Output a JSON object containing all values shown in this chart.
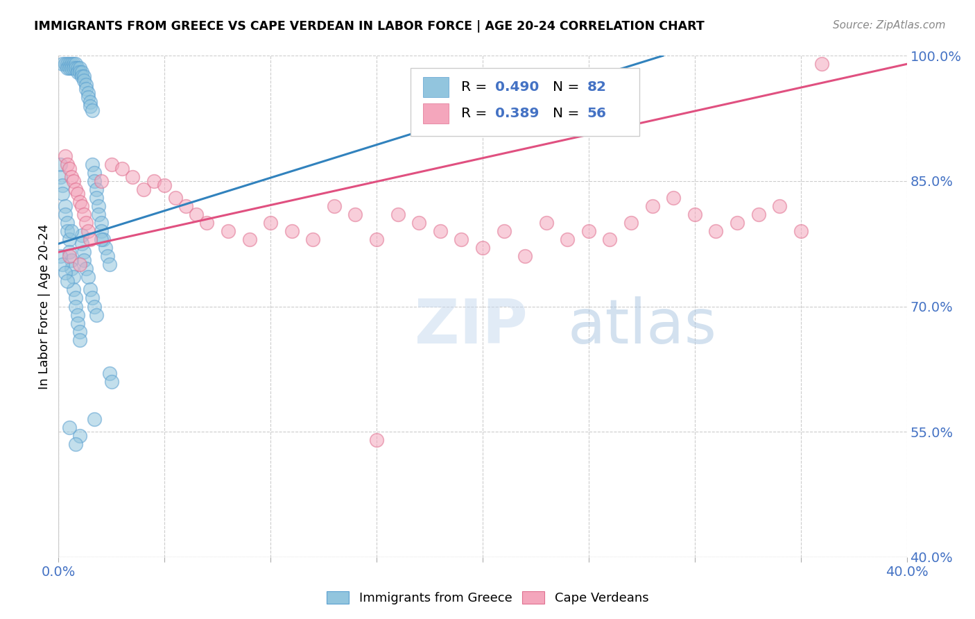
{
  "title": "IMMIGRANTS FROM GREECE VS CAPE VERDEAN IN LABOR FORCE | AGE 20-24 CORRELATION CHART",
  "source": "Source: ZipAtlas.com",
  "ylabel": "In Labor Force | Age 20-24",
  "xlim": [
    0.0,
    0.4
  ],
  "ylim": [
    0.4,
    1.0
  ],
  "xticks": [
    0.0,
    0.05,
    0.1,
    0.15,
    0.2,
    0.25,
    0.3,
    0.35,
    0.4
  ],
  "yticks": [
    0.4,
    0.55,
    0.7,
    0.85,
    1.0
  ],
  "ytick_labels": [
    "40.0%",
    "55.0%",
    "70.0%",
    "85.0%",
    "100.0%"
  ],
  "bottom_legend_blue": "Immigrants from Greece",
  "bottom_legend_pink": "Cape Verdeans",
  "blue_color": "#92c5de",
  "pink_color": "#f4a6bc",
  "blue_line_color": "#3182bd",
  "pink_line_color": "#e05080",
  "blue_edge_color": "#5aa0d0",
  "pink_edge_color": "#e07090",
  "R_blue": 0.49,
  "N_blue": 82,
  "R_pink": 0.389,
  "N_pink": 56,
  "watermark": "ZIPatlas",
  "blue_scatter_x": [
    0.002,
    0.003,
    0.004,
    0.004,
    0.005,
    0.005,
    0.006,
    0.006,
    0.007,
    0.007,
    0.008,
    0.008,
    0.009,
    0.009,
    0.01,
    0.01,
    0.011,
    0.011,
    0.012,
    0.012,
    0.013,
    0.013,
    0.014,
    0.014,
    0.015,
    0.015,
    0.016,
    0.016,
    0.017,
    0.017,
    0.018,
    0.018,
    0.019,
    0.019,
    0.02,
    0.02,
    0.021,
    0.022,
    0.023,
    0.024,
    0.001,
    0.001,
    0.002,
    0.002,
    0.003,
    0.003,
    0.004,
    0.004,
    0.005,
    0.005,
    0.006,
    0.006,
    0.007,
    0.007,
    0.008,
    0.008,
    0.009,
    0.009,
    0.01,
    0.01,
    0.011,
    0.011,
    0.012,
    0.012,
    0.013,
    0.014,
    0.015,
    0.016,
    0.017,
    0.018,
    0.001,
    0.002,
    0.003,
    0.004,
    0.024,
    0.025,
    0.017,
    0.005,
    0.01,
    0.008,
    0.006,
    0.02
  ],
  "blue_scatter_y": [
    0.99,
    0.99,
    0.99,
    0.985,
    0.99,
    0.985,
    0.99,
    0.985,
    0.99,
    0.985,
    0.99,
    0.985,
    0.985,
    0.98,
    0.985,
    0.98,
    0.98,
    0.975,
    0.975,
    0.97,
    0.965,
    0.96,
    0.955,
    0.95,
    0.945,
    0.94,
    0.935,
    0.87,
    0.86,
    0.85,
    0.84,
    0.83,
    0.82,
    0.81,
    0.8,
    0.79,
    0.78,
    0.77,
    0.76,
    0.75,
    0.87,
    0.855,
    0.845,
    0.835,
    0.82,
    0.81,
    0.8,
    0.79,
    0.78,
    0.765,
    0.755,
    0.745,
    0.735,
    0.72,
    0.71,
    0.7,
    0.69,
    0.68,
    0.67,
    0.66,
    0.785,
    0.775,
    0.765,
    0.755,
    0.745,
    0.735,
    0.72,
    0.71,
    0.7,
    0.69,
    0.76,
    0.75,
    0.74,
    0.73,
    0.62,
    0.61,
    0.565,
    0.555,
    0.545,
    0.535,
    0.79,
    0.78
  ],
  "pink_scatter_x": [
    0.003,
    0.004,
    0.005,
    0.006,
    0.007,
    0.008,
    0.009,
    0.01,
    0.011,
    0.012,
    0.013,
    0.014,
    0.015,
    0.02,
    0.025,
    0.03,
    0.035,
    0.04,
    0.045,
    0.05,
    0.055,
    0.06,
    0.065,
    0.07,
    0.08,
    0.09,
    0.1,
    0.11,
    0.12,
    0.13,
    0.14,
    0.15,
    0.16,
    0.17,
    0.18,
    0.19,
    0.2,
    0.21,
    0.22,
    0.23,
    0.24,
    0.25,
    0.26,
    0.27,
    0.28,
    0.29,
    0.3,
    0.31,
    0.32,
    0.33,
    0.34,
    0.35,
    0.005,
    0.01,
    0.15,
    0.36
  ],
  "pink_scatter_y": [
    0.88,
    0.87,
    0.865,
    0.855,
    0.85,
    0.84,
    0.835,
    0.825,
    0.82,
    0.81,
    0.8,
    0.79,
    0.78,
    0.85,
    0.87,
    0.865,
    0.855,
    0.84,
    0.85,
    0.845,
    0.83,
    0.82,
    0.81,
    0.8,
    0.79,
    0.78,
    0.8,
    0.79,
    0.78,
    0.82,
    0.81,
    0.78,
    0.81,
    0.8,
    0.79,
    0.78,
    0.77,
    0.79,
    0.76,
    0.8,
    0.78,
    0.79,
    0.78,
    0.8,
    0.82,
    0.83,
    0.81,
    0.79,
    0.8,
    0.81,
    0.82,
    0.79,
    0.76,
    0.75,
    0.54,
    0.99
  ],
  "blue_line_x0": 0.0,
  "blue_line_x1": 0.285,
  "blue_line_y0": 0.775,
  "blue_line_y1": 1.0,
  "pink_line_x0": 0.0,
  "pink_line_x1": 0.4,
  "pink_line_y0": 0.765,
  "pink_line_y1": 0.99
}
